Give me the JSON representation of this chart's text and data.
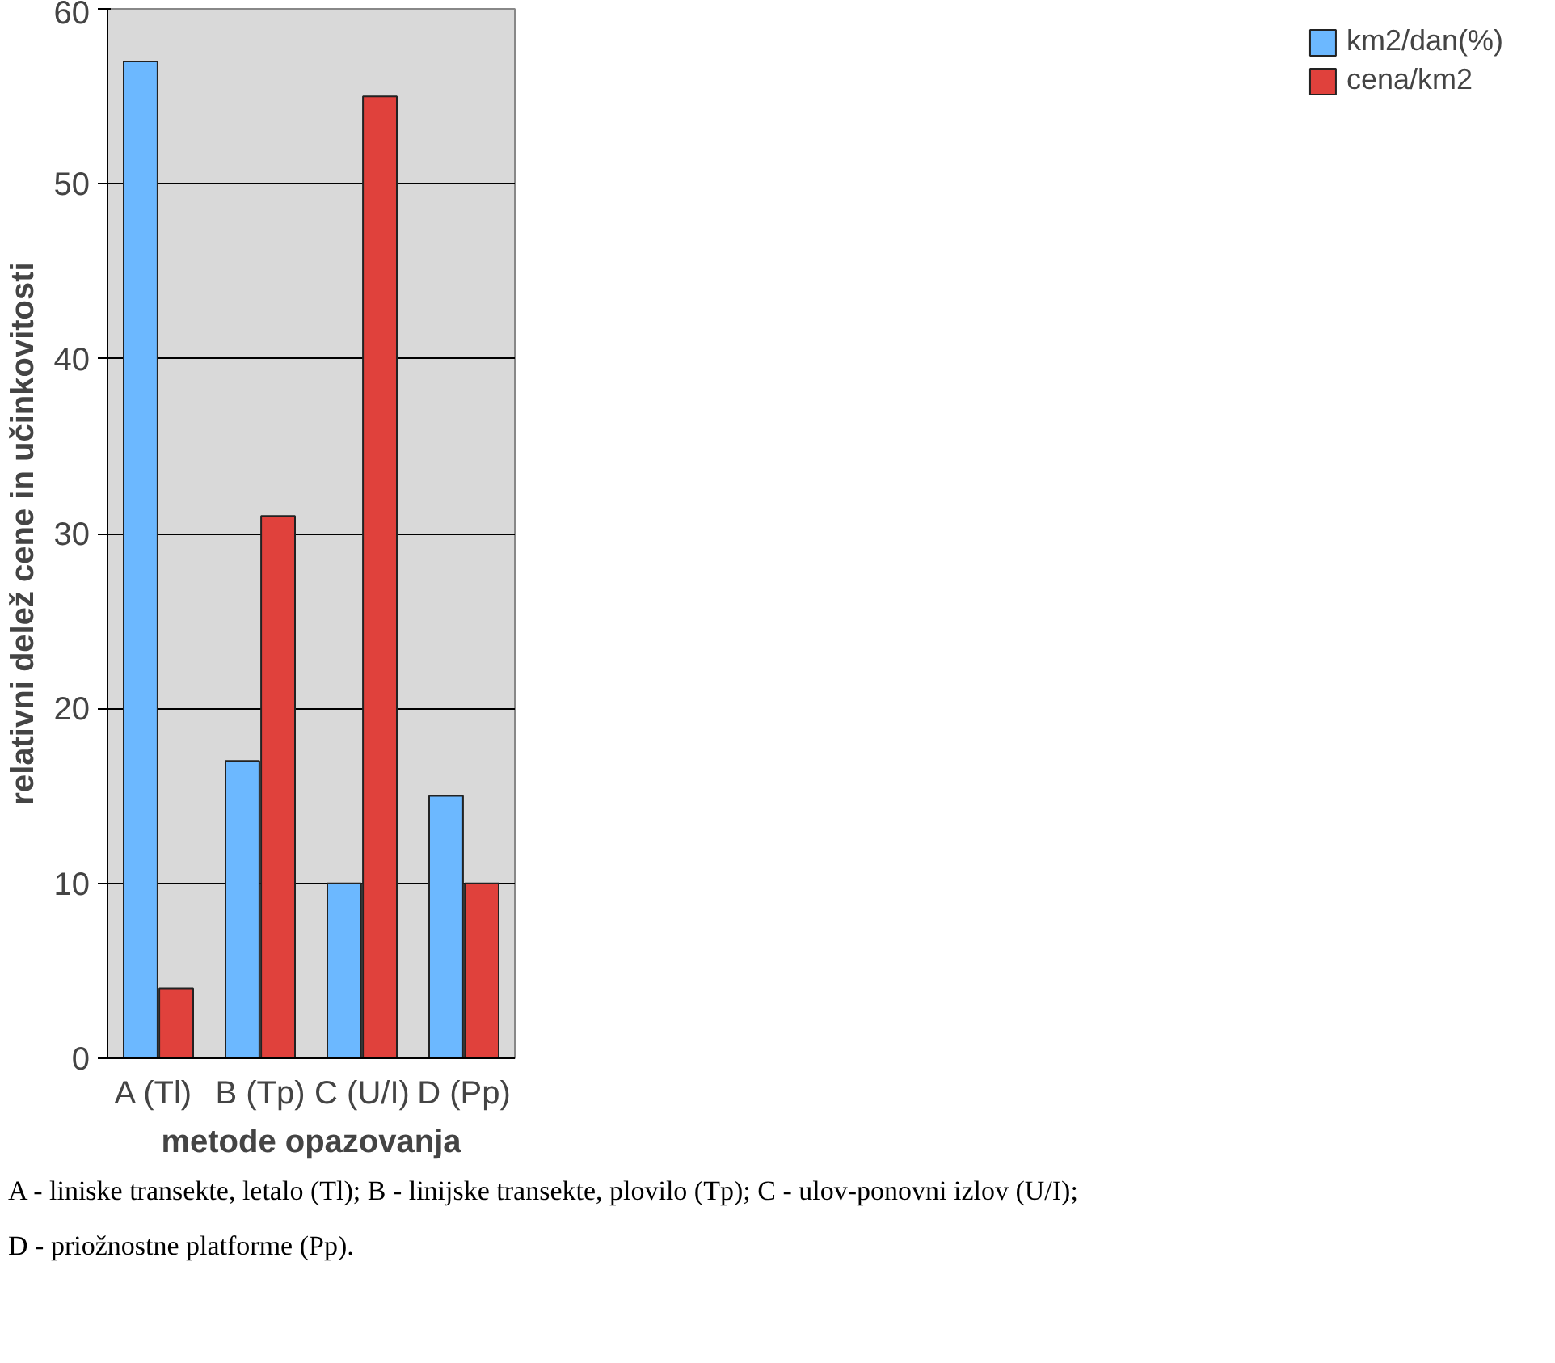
{
  "chart_data": {
    "type": "bar",
    "categories": [
      "A  (Tl)",
      "B (Tp)",
      "C (U/I)",
      "D (Pp)"
    ],
    "series": [
      {
        "name": "km2/dan(%)",
        "color": "#6cb8ff",
        "values": [
          57,
          17,
          10,
          15
        ]
      },
      {
        "name": "cena/km2",
        "color": "#e0413c",
        "values": [
          4,
          31,
          55,
          10
        ]
      }
    ],
    "xlabel": "metode opazovanja",
    "ylabel": "relativni delež cene in učinkovitosti",
    "ylim": [
      0,
      60
    ],
    "yticks": [
      0,
      10,
      20,
      30,
      40,
      50,
      60
    ],
    "grid": "y",
    "legend": "right",
    "annotations": [
      "A - liniske transekte, letalo (Tl); B - linijske transekte, plovilo (Tp); C - ulov-ponovni izlov (U/I);",
      "D - priožnostne platforme (Pp)."
    ]
  }
}
